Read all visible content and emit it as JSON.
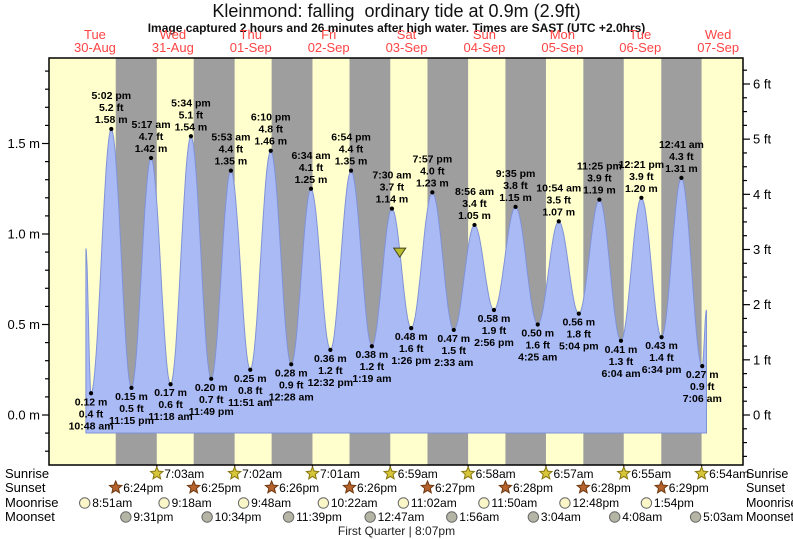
{
  "chart_data": {
    "type": "area",
    "title": "Kleinmond: falling  ordinary tide at 0.9m (2.9ft)",
    "subtitle": "Image captured 2 hours and 26 minutes after high water. Times are SAST (UTC +2.0hrs)",
    "moon_phase_note": "First Quarter | 8:07pm",
    "days": [
      {
        "name": "Tue",
        "date": "30-Aug"
      },
      {
        "name": "Wed",
        "date": "31-Aug"
      },
      {
        "name": "Thu",
        "date": "01-Sep"
      },
      {
        "name": "Fri",
        "date": "02-Sep"
      },
      {
        "name": "Sat",
        "date": "03-Sep"
      },
      {
        "name": "Sun",
        "date": "04-Sep"
      },
      {
        "name": "Mon",
        "date": "05-Sep"
      },
      {
        "name": "Tue",
        "date": "06-Sep"
      },
      {
        "name": "Wed",
        "date": "07-Sep"
      }
    ],
    "y_axis_left": {
      "unit": "m",
      "labels": [
        "0.0 m",
        "0.5 m",
        "1.0 m",
        "1.5 m"
      ],
      "values": [
        0,
        0.5,
        1,
        1.5
      ]
    },
    "y_axis_right": {
      "unit": "ft",
      "labels": [
        "0 ft",
        "1 ft",
        "2 ft",
        "3 ft",
        "4 ft",
        "5 ft",
        "6 ft"
      ],
      "values": [
        0,
        1,
        2,
        3,
        4,
        5,
        6
      ]
    },
    "tide_events": [
      {
        "kind": "low",
        "day": 0,
        "time": "10:48 am",
        "hour": 10.8,
        "meters": 0.12,
        "feet": 0.4
      },
      {
        "kind": "high",
        "day": 0,
        "time": "5:02 pm",
        "hour": 17.033,
        "meters": 1.58,
        "feet": 5.2
      },
      {
        "kind": "low",
        "day": 0,
        "time": "11:15 pm",
        "hour": 23.25,
        "meters": 0.15,
        "feet": 0.5
      },
      {
        "kind": "high",
        "day": 1,
        "time": "5:17 am",
        "hour": 5.283,
        "meters": 1.42,
        "feet": 4.7
      },
      {
        "kind": "low",
        "day": 1,
        "time": "11:18 am",
        "hour": 11.3,
        "meters": 0.17,
        "feet": 0.6
      },
      {
        "kind": "high",
        "day": 1,
        "time": "5:34 pm",
        "hour": 17.567,
        "meters": 1.54,
        "feet": 5.1
      },
      {
        "kind": "low",
        "day": 1,
        "time": "11:49 pm",
        "hour": 23.817,
        "meters": 0.2,
        "feet": 0.7
      },
      {
        "kind": "high",
        "day": 2,
        "time": "5:53 am",
        "hour": 5.883,
        "meters": 1.35,
        "feet": 4.4
      },
      {
        "kind": "low",
        "day": 2,
        "time": "11:51 am",
        "hour": 11.85,
        "meters": 0.25,
        "feet": 0.8
      },
      {
        "kind": "high",
        "day": 2,
        "time": "6:10 pm",
        "hour": 18.167,
        "meters": 1.46,
        "feet": 4.8
      },
      {
        "kind": "low",
        "day": 3,
        "time": "12:28 am",
        "hour": 0.467,
        "meters": 0.28,
        "feet": 0.9
      },
      {
        "kind": "high",
        "day": 3,
        "time": "6:34 am",
        "hour": 6.567,
        "meters": 1.25,
        "feet": 4.1
      },
      {
        "kind": "low",
        "day": 3,
        "time": "12:32 pm",
        "hour": 12.533,
        "meters": 0.36,
        "feet": 1.2
      },
      {
        "kind": "high",
        "day": 3,
        "time": "6:54 pm",
        "hour": 18.9,
        "meters": 1.35,
        "feet": 4.4
      },
      {
        "kind": "low",
        "day": 4,
        "time": "1:19 am",
        "hour": 1.317,
        "meters": 0.38,
        "feet": 1.2
      },
      {
        "kind": "high",
        "day": 4,
        "time": "7:30 am",
        "hour": 7.5,
        "meters": 1.14,
        "feet": 3.7
      },
      {
        "kind": "low",
        "day": 4,
        "time": "1:26 pm",
        "hour": 13.433,
        "meters": 0.48,
        "feet": 1.6
      },
      {
        "kind": "high",
        "day": 4,
        "time": "7:57 pm",
        "hour": 19.95,
        "meters": 1.23,
        "feet": 4.0
      },
      {
        "kind": "low",
        "day": 5,
        "time": "2:33 am",
        "hour": 2.55,
        "meters": 0.47,
        "feet": 1.5
      },
      {
        "kind": "high",
        "day": 5,
        "time": "8:56 am",
        "hour": 8.933,
        "meters": 1.05,
        "feet": 3.4
      },
      {
        "kind": "low",
        "day": 5,
        "time": "2:56 pm",
        "hour": 14.933,
        "meters": 0.58,
        "feet": 1.9
      },
      {
        "kind": "high",
        "day": 5,
        "time": "9:35 pm",
        "hour": 21.583,
        "meters": 1.15,
        "feet": 3.8
      },
      {
        "kind": "low",
        "day": 6,
        "time": "4:25 am",
        "hour": 4.417,
        "meters": 0.5,
        "feet": 1.6
      },
      {
        "kind": "high",
        "day": 6,
        "time": "10:54 am",
        "hour": 10.9,
        "meters": 1.07,
        "feet": 3.5
      },
      {
        "kind": "low",
        "day": 6,
        "time": "5:04 pm",
        "hour": 17.067,
        "meters": 0.56,
        "feet": 1.8
      },
      {
        "kind": "high",
        "day": 6,
        "time": "11:25 pm",
        "hour": 23.417,
        "meters": 1.19,
        "feet": 3.9
      },
      {
        "kind": "low",
        "day": 7,
        "time": "6:04 am",
        "hour": 6.067,
        "meters": 0.41,
        "feet": 1.3
      },
      {
        "kind": "high",
        "day": 7,
        "time": "12:21 pm",
        "hour": 12.35,
        "meters": 1.2,
        "feet": 3.9
      },
      {
        "kind": "low",
        "day": 7,
        "time": "6:34 pm",
        "hour": 18.567,
        "meters": 0.43,
        "feet": 1.4
      },
      {
        "kind": "high",
        "day": 8,
        "time": "12:41 am",
        "hour": 0.683,
        "meters": 1.31,
        "feet": 4.3
      },
      {
        "kind": "low",
        "day": 8,
        "time": "7:06 am",
        "hour": 7.1,
        "meters": 0.27,
        "feet": 0.9
      }
    ],
    "curve_edges": {
      "start": {
        "day": 0,
        "hour": 9.2,
        "meters": 0.92
      },
      "end": {
        "day": 8,
        "hour": 8.4,
        "meters": 0.58
      }
    },
    "falling_tide_marker": {
      "day": 4,
      "hour": 9.9,
      "meters": 0.9
    },
    "sun_moon": {
      "rows": [
        {
          "id": "sunrise",
          "label": "Sunrise",
          "icon": "sunrise-star",
          "entries": [
            {
              "day": 1,
              "time": "7:03am",
              "hour": 7.05
            },
            {
              "day": 2,
              "time": "7:02am",
              "hour": 7.033
            },
            {
              "day": 3,
              "time": "7:01am",
              "hour": 7.017
            },
            {
              "day": 4,
              "time": "6:59am",
              "hour": 6.983
            },
            {
              "day": 5,
              "time": "6:58am",
              "hour": 6.967
            },
            {
              "day": 6,
              "time": "6:57am",
              "hour": 6.95
            },
            {
              "day": 7,
              "time": "6:55am",
              "hour": 6.917
            },
            {
              "day": 8,
              "time": "6:54am",
              "hour": 6.9
            }
          ]
        },
        {
          "id": "sunset",
          "label": "Sunset",
          "icon": "sunset-star",
          "entries": [
            {
              "day": 0,
              "time": "6:24pm",
              "hour": 18.4
            },
            {
              "day": 1,
              "time": "6:25pm",
              "hour": 18.417
            },
            {
              "day": 2,
              "time": "6:26pm",
              "hour": 18.433
            },
            {
              "day": 3,
              "time": "6:26pm",
              "hour": 18.433
            },
            {
              "day": 4,
              "time": "6:27pm",
              "hour": 18.45
            },
            {
              "day": 5,
              "time": "6:28pm",
              "hour": 18.467
            },
            {
              "day": 6,
              "time": "6:28pm",
              "hour": 18.467
            },
            {
              "day": 7,
              "time": "6:29pm",
              "hour": 18.483
            }
          ]
        },
        {
          "id": "moonrise",
          "label": "Moonrise",
          "icon": "moonrise-circle",
          "entries": [
            {
              "day": 0,
              "time": "8:51am",
              "hour": 8.85
            },
            {
              "day": 1,
              "time": "9:18am",
              "hour": 9.3
            },
            {
              "day": 2,
              "time": "9:48am",
              "hour": 9.8
            },
            {
              "day": 3,
              "time": "10:22am",
              "hour": 10.367
            },
            {
              "day": 4,
              "time": "11:02am",
              "hour": 11.033
            },
            {
              "day": 5,
              "time": "11:50am",
              "hour": 11.833
            },
            {
              "day": 6,
              "time": "12:48pm",
              "hour": 12.8
            },
            {
              "day": 7,
              "time": "1:54pm",
              "hour": 13.9
            }
          ]
        },
        {
          "id": "moonset",
          "label": "Moonset",
          "icon": "moonset-circle",
          "entries": [
            {
              "day": 0,
              "time": "9:31pm",
              "hour": 21.517
            },
            {
              "day": 1,
              "time": "10:34pm",
              "hour": 22.567
            },
            {
              "day": 2,
              "time": "11:39pm",
              "hour": 23.65
            },
            {
              "day": 4,
              "time": "12:47am",
              "hour": 0.783
            },
            {
              "day": 5,
              "time": "1:56am",
              "hour": 1.933
            },
            {
              "day": 6,
              "time": "3:04am",
              "hour": 3.067
            },
            {
              "day": 7,
              "time": "4:08am",
              "hour": 4.133
            },
            {
              "day": 8,
              "time": "5:03am",
              "hour": 5.05
            }
          ]
        }
      ]
    },
    "colors": {
      "day_band": "#ffffcd",
      "night_band": "#9e9e9e",
      "water": "#a9baf5",
      "water_outline": "#8093d8",
      "day_label": "#ff4444",
      "sunrise_star": "#d8c63a",
      "sunrise_star_outline": "#86760f",
      "sunset_star": "#b5622d",
      "sunset_star_outline": "#6e3a12",
      "moonrise": "#faf6c8",
      "moonset": "#b5b5a6",
      "moon_outline": "#666666",
      "marker": "#b9bd2f",
      "marker_outline": "#44441f"
    }
  }
}
